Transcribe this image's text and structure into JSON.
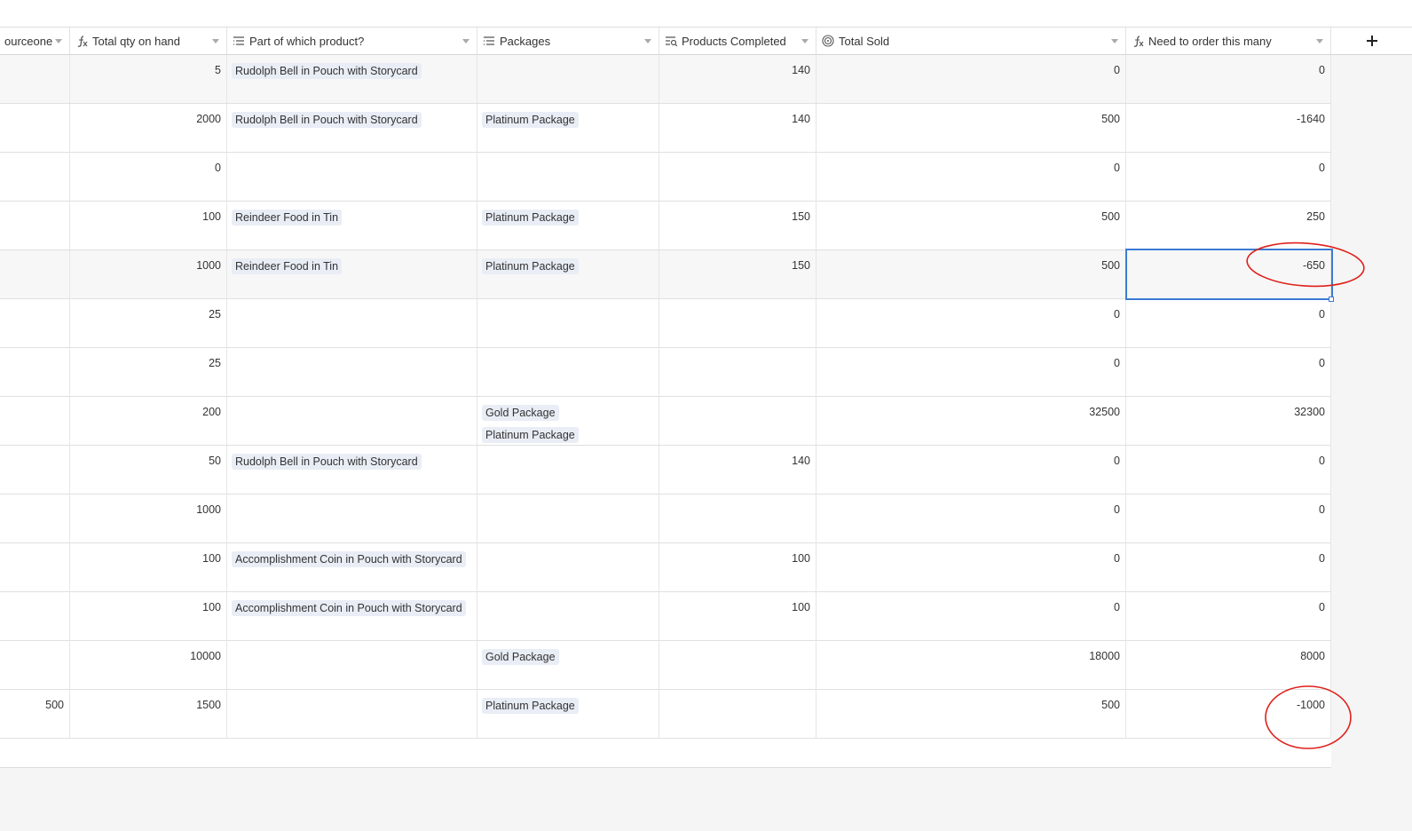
{
  "table": {
    "headers": [
      "ourceone",
      "Total qty on hand",
      "Part of which product?",
      "Packages",
      "Products Completed",
      "Total Sold",
      "Need to order this many"
    ],
    "rows": [
      {
        "qty": 5,
        "part": [
          "Rudolph Bell in Pouch with Storycard"
        ],
        "completed": 140,
        "sold": 0,
        "need": 0
      },
      {
        "qty": 2000,
        "part": [
          "Rudolph Bell in Pouch with Storycard"
        ],
        "packages": [
          "Platinum Package"
        ],
        "completed": 140,
        "sold": 500,
        "need": -1640
      },
      {
        "qty": 0,
        "sold": 0,
        "need": 0
      },
      {
        "qty": 100,
        "part": [
          "Reindeer Food in Tin"
        ],
        "packages": [
          "Platinum Package"
        ],
        "completed": 150,
        "sold": 500,
        "need": 250
      },
      {
        "qty": 1000,
        "part": [
          "Reindeer Food in Tin"
        ],
        "packages": [
          "Platinum Package"
        ],
        "completed": 150,
        "sold": 500,
        "need": -650
      },
      {
        "qty": 25,
        "sold": 0,
        "need": 0
      },
      {
        "qty": 25,
        "sold": 0,
        "need": 0
      },
      {
        "qty": 200,
        "packages": [
          "Gold Package",
          "Platinum Package"
        ],
        "sold": 32500,
        "need": 32300
      },
      {
        "qty": 50,
        "part": [
          "Rudolph Bell in Pouch with Storycard"
        ],
        "completed": 140,
        "sold": 0,
        "need": 0
      },
      {
        "qty": 1000,
        "sold": 0,
        "need": 0
      },
      {
        "qty": 100,
        "part": [
          "Accomplishment Coin in Pouch with Storycard"
        ],
        "completed": 100,
        "sold": 0,
        "need": 0
      },
      {
        "qty": 100,
        "part": [
          "Accomplishment Coin in Pouch with Storycard"
        ],
        "completed": 100,
        "sold": 0,
        "need": 0
      },
      {
        "qty": 10000,
        "packages": [
          "Gold Package"
        ],
        "sold": 18000,
        "need": 8000
      },
      {
        "source": 500,
        "qty": 1500,
        "packages": [
          "Platinum Package"
        ],
        "sold": 500,
        "need": -1000
      }
    ]
  }
}
